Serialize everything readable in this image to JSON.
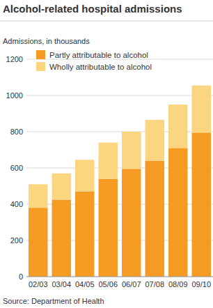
{
  "chart_data": {
    "type": "bar",
    "title": "Alcohol-related hospital admissions",
    "subtitle": "Admissions, in thousands",
    "source": "Source: Department of Health",
    "categories": [
      "02/03",
      "03/04",
      "04/05",
      "05/06",
      "06/07",
      "07/08",
      "08/09",
      "09/10"
    ],
    "series": [
      {
        "name": "Partly attributable to alcohol",
        "color": "#f59a23",
        "values": [
          380,
          425,
          470,
          540,
          595,
          640,
          710,
          795
        ]
      },
      {
        "name": "Wholly attributable to alcohol",
        "color": "#fcd580",
        "values": [
          130,
          145,
          175,
          200,
          205,
          225,
          240,
          260
        ]
      }
    ],
    "stacked": true,
    "ylim": [
      0,
      1200
    ],
    "yticks": [
      0,
      200,
      400,
      600,
      800,
      1000,
      1200
    ],
    "grid": true,
    "legend": "top-left"
  }
}
